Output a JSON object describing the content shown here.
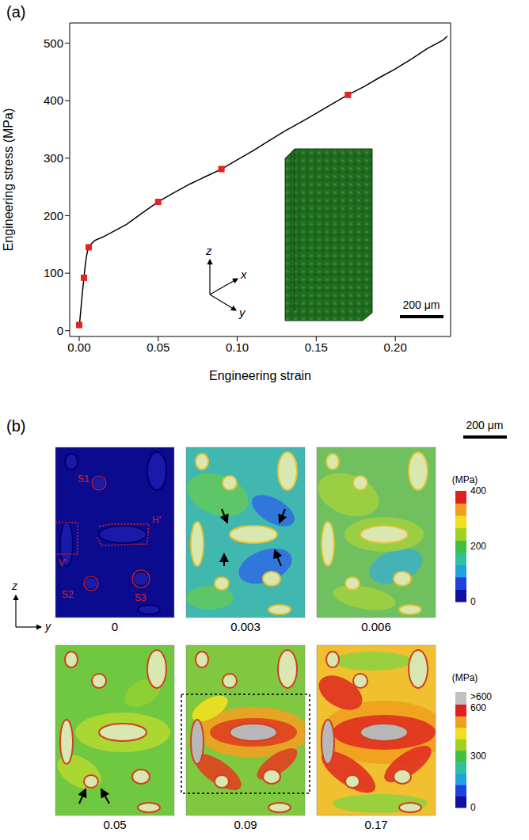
{
  "chart_data": {
    "type": "line",
    "panel_label": "(a)",
    "x_label": "Engineering strain",
    "y_label": "Engineering stress (MPa)",
    "xlim": [
      -0.006,
      0.235
    ],
    "ylim": [
      -10,
      535
    ],
    "xticks": [
      {
        "value": 0,
        "label": "0.00"
      },
      {
        "value": 0.05,
        "label": "0.05"
      },
      {
        "value": 0.1,
        "label": "0.10"
      },
      {
        "value": 0.15,
        "label": "0.15"
      },
      {
        "value": 0.2,
        "label": "0.20"
      }
    ],
    "yticks": [
      0,
      100,
      200,
      300,
      400,
      500
    ],
    "series": [
      {
        "type": "line",
        "color": "#000000",
        "x": [
          0,
          0.001,
          0.002,
          0.003,
          0.004,
          0.005,
          0.006,
          0.008,
          0.01,
          0.015,
          0.02,
          0.03,
          0.04,
          0.05,
          0.06,
          0.07,
          0.08,
          0.09,
          0.1,
          0.11,
          0.12,
          0.13,
          0.14,
          0.15,
          0.16,
          0.17,
          0.18,
          0.19,
          0.2,
          0.21,
          0.22,
          0.23,
          0.233
        ],
        "values": [
          5,
          35,
          65,
          92,
          118,
          135,
          145,
          152,
          157,
          163,
          170,
          185,
          205,
          224,
          240,
          255,
          268,
          281,
          297,
          313,
          330,
          347,
          362,
          378,
          394,
          410,
          424,
          440,
          455,
          472,
          490,
          505,
          512
        ]
      },
      {
        "type": "scatter",
        "color": "#e8221c",
        "marker": "square",
        "x": [
          0,
          0.003,
          0.006,
          0.05,
          0.09,
          0.17
        ],
        "values": [
          10,
          92,
          145,
          224,
          281,
          410
        ]
      }
    ],
    "annotations": {
      "axes": [
        "z",
        "x",
        "y"
      ],
      "scale_bar": "200 μm"
    }
  },
  "panel_b": {
    "panel_label": "(b)",
    "scale_bar": "200 μm",
    "axes": [
      "z",
      "y"
    ],
    "regions": [
      "S1",
      "H'",
      "V'",
      "S2",
      "S3"
    ],
    "strains": [
      0,
      0.003,
      0.006,
      0.05,
      0.09,
      0.17
    ],
    "colorbars": [
      {
        "unit": "(MPa)",
        "range": [
          0,
          400
        ],
        "ticks": [
          0,
          200,
          400
        ]
      },
      {
        "unit": "(MPa)",
        "range": [
          0,
          600
        ],
        "ticks": [
          0,
          300,
          600
        ],
        "over_label": ">600"
      }
    ]
  }
}
